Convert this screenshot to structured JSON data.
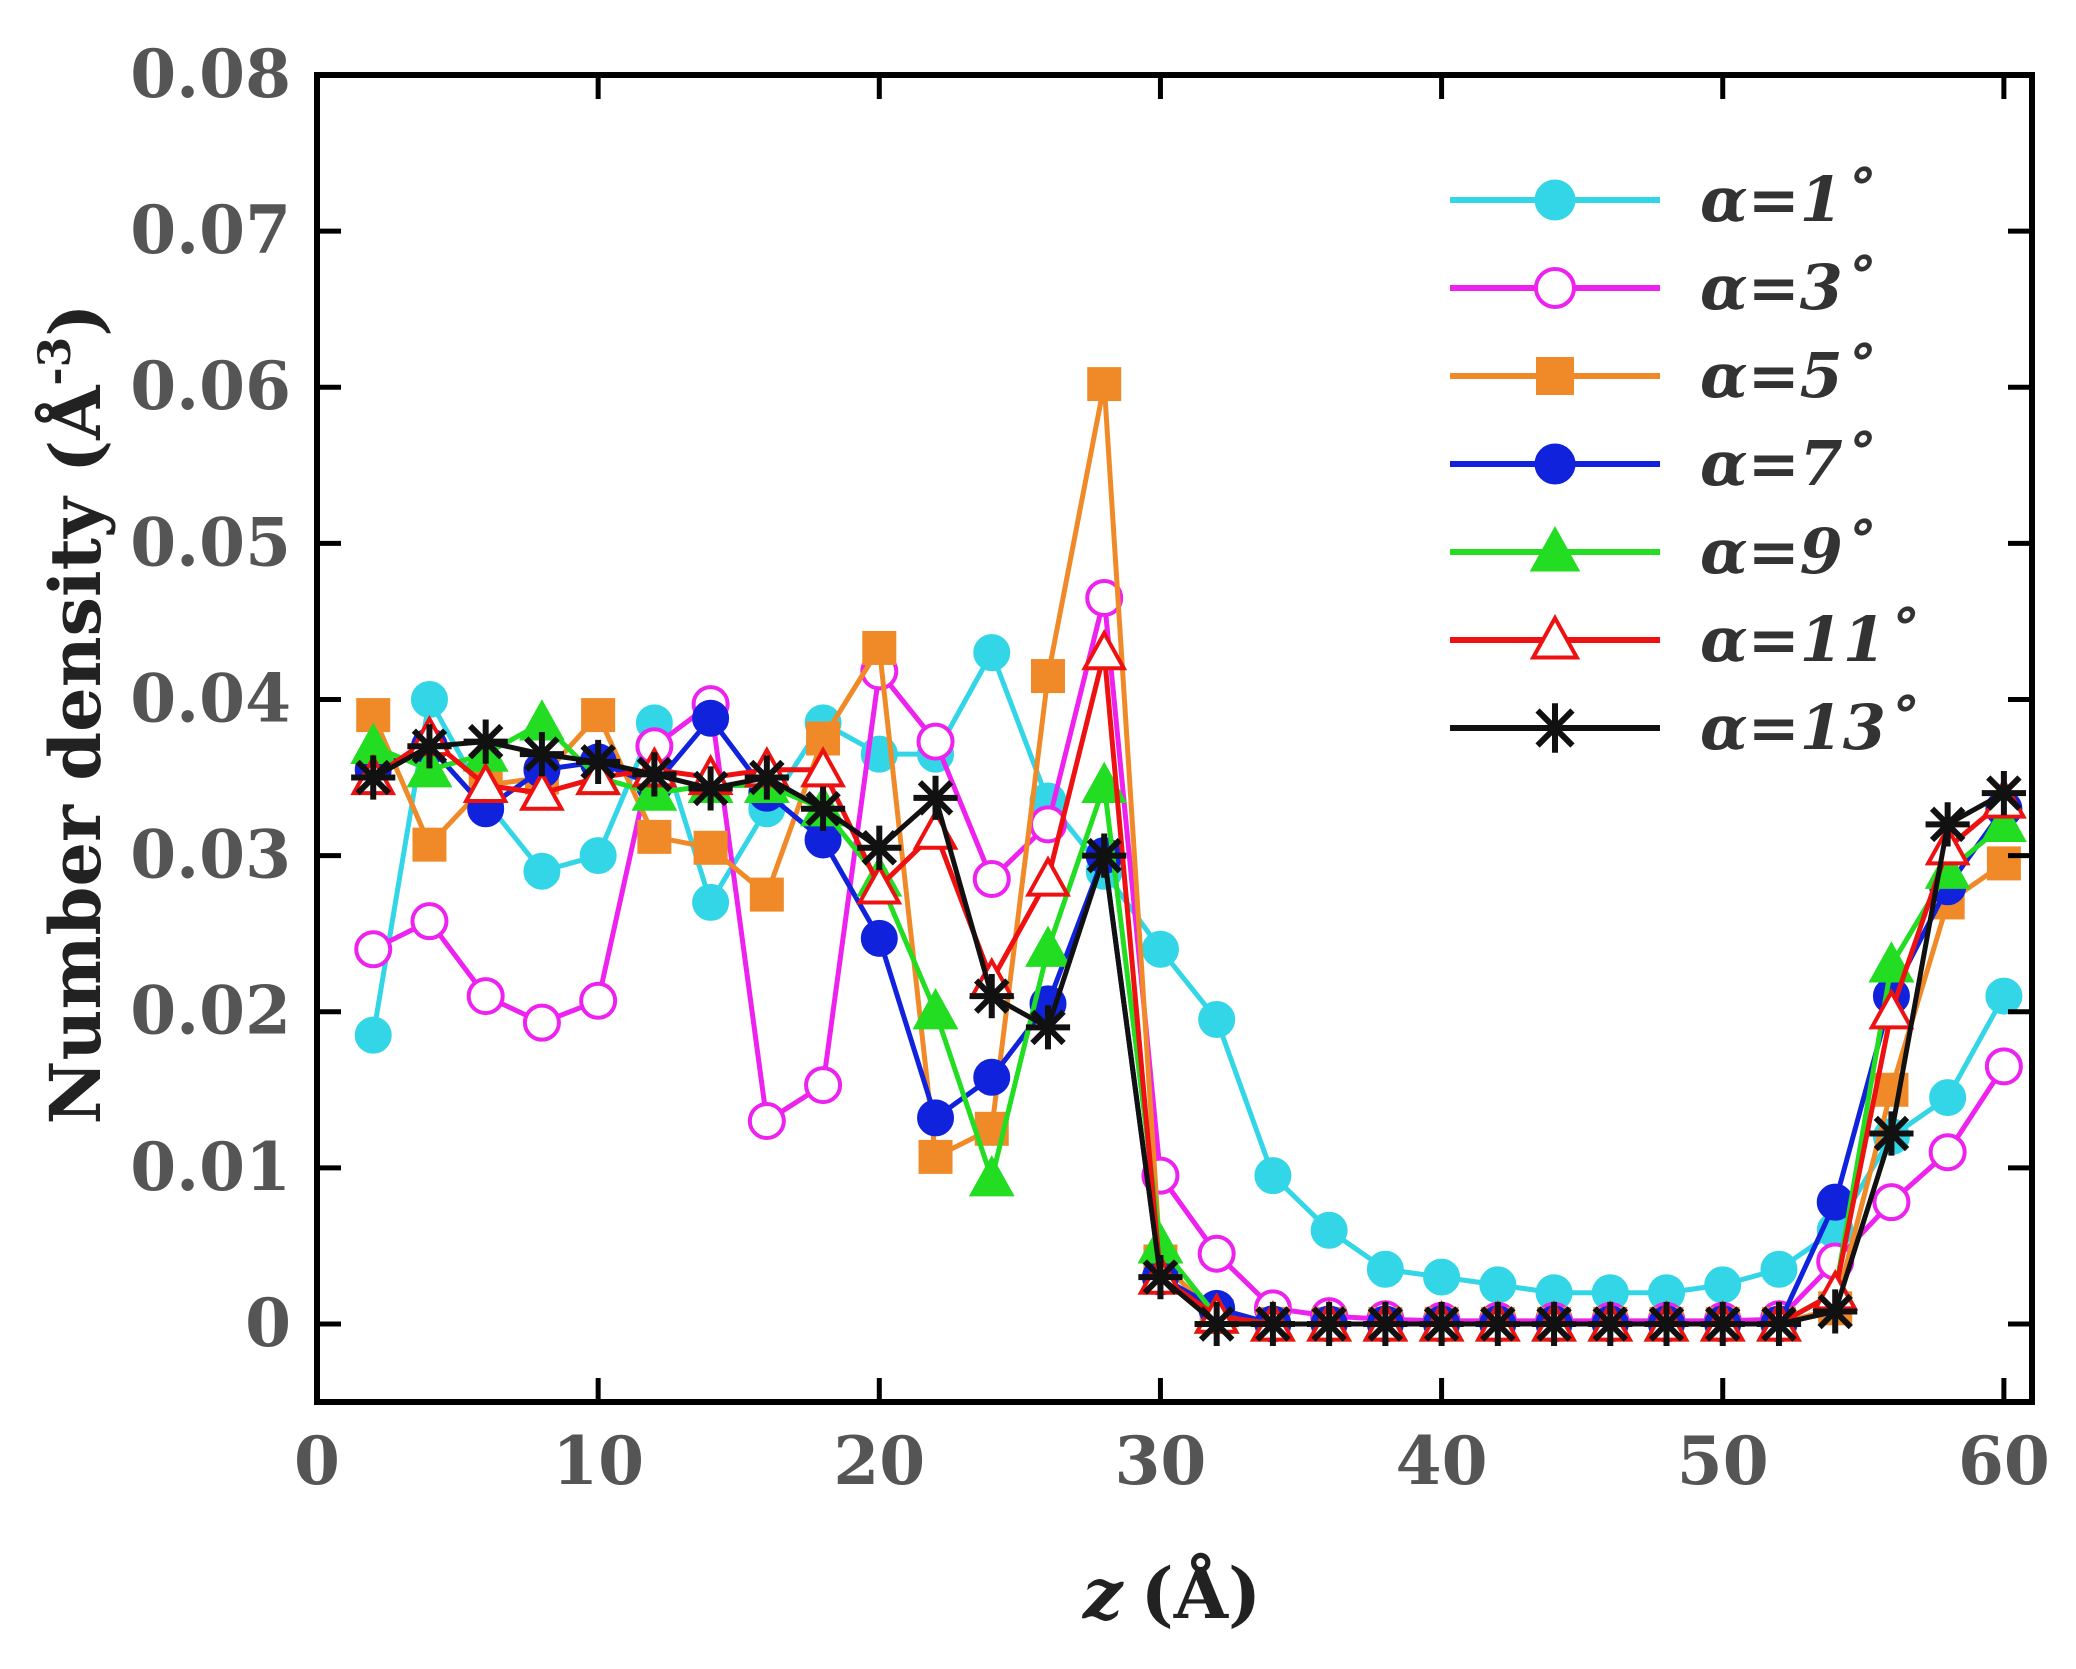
{
  "chart_data": {
    "type": "line",
    "title": "",
    "xlabel_italic": "z",
    "xlabel_unit": "(Å)",
    "ylabel": "Number density (Å",
    "ylabel_sup": "-3",
    "ylabel_close": ")",
    "xlim": [
      0,
      61
    ],
    "ylim": [
      -0.005,
      0.08
    ],
    "xticks": [
      0,
      10,
      20,
      30,
      40,
      50,
      60
    ],
    "xtick_labels": [
      "0",
      "10",
      "20",
      "30",
      "40",
      "50",
      "60"
    ],
    "yticks": [
      0,
      0.01,
      0.02,
      0.03,
      0.04,
      0.05,
      0.06,
      0.07,
      0.08
    ],
    "ytick_labels": [
      "0",
      "0.01",
      "0.02",
      "0.03",
      "0.04",
      "0.05",
      "0.06",
      "0.07",
      "0.08"
    ],
    "x": [
      2,
      4,
      6,
      8,
      10,
      12,
      14,
      16,
      18,
      20,
      22,
      24,
      26,
      28,
      30,
      32,
      34,
      36,
      38,
      40,
      42,
      44,
      46,
      48,
      50,
      52,
      54,
      56,
      58,
      60
    ],
    "series": [
      {
        "name": "α=1˚",
        "color": "#33d6e6",
        "marker": "circle-filled",
        "values": [
          0.0185,
          0.04,
          0.0335,
          0.029,
          0.03,
          0.0385,
          0.027,
          0.033,
          0.0385,
          0.0365,
          0.0365,
          0.043,
          0.0335,
          0.029,
          0.024,
          0.0195,
          0.0095,
          0.006,
          0.0035,
          0.003,
          0.0025,
          0.002,
          0.002,
          0.002,
          0.0025,
          0.0035,
          0.006,
          0.012,
          0.0145,
          0.021
        ]
      },
      {
        "name": "α=3˚",
        "color": "#ee22ee",
        "marker": "circle-open",
        "values": [
          0.024,
          0.0258,
          0.021,
          0.0193,
          0.0207,
          0.037,
          0.0397,
          0.013,
          0.0153,
          0.0418,
          0.0373,
          0.0285,
          0.032,
          0.0465,
          0.0095,
          0.0045,
          0.001,
          0.0005,
          0.0003,
          0.0002,
          0.0002,
          0.0002,
          0.0002,
          0.0002,
          0.0002,
          0.0003,
          0.004,
          0.0078,
          0.011,
          0.0165
        ]
      },
      {
        "name": "α=5˚",
        "color": "#f08a28",
        "marker": "square-filled",
        "values": [
          0.039,
          0.0307,
          0.0345,
          0.035,
          0.039,
          0.0312,
          0.0305,
          0.0275,
          0.0375,
          0.0433,
          0.0107,
          0.0125,
          0.0415,
          0.0602,
          0.004,
          0.0005,
          0.0,
          0.0,
          0.0,
          0.0,
          0.0,
          0.0,
          0.0,
          0.0,
          0.0,
          0.0,
          0.001,
          0.015,
          0.027,
          0.0295
        ]
      },
      {
        "name": "α=7˚",
        "color": "#1122dd",
        "marker": "circle-filled",
        "values": [
          0.0355,
          0.037,
          0.033,
          0.0355,
          0.036,
          0.0345,
          0.0388,
          0.034,
          0.031,
          0.0247,
          0.0132,
          0.0158,
          0.0205,
          0.03,
          0.003,
          0.001,
          0.0,
          0.0,
          0.0,
          0.0,
          0.0,
          0.0,
          0.0,
          0.0,
          0.0,
          0.0,
          0.0078,
          0.021,
          0.028,
          0.033
        ]
      },
      {
        "name": "α=9˚",
        "color": "#22dd22",
        "marker": "triangle-filled",
        "values": [
          0.037,
          0.0355,
          0.0365,
          0.0385,
          0.035,
          0.034,
          0.0345,
          0.0345,
          0.033,
          0.0285,
          0.02,
          0.0093,
          0.024,
          0.0345,
          0.005,
          0.0005,
          0.0,
          0.0,
          0.0,
          0.0,
          0.0,
          0.0,
          0.0,
          0.0,
          0.0,
          0.0,
          0.002,
          0.023,
          0.029,
          0.032
        ]
      },
      {
        "name": "α=11˚",
        "color": "#ee1111",
        "marker": "triangle-open",
        "values": [
          0.035,
          0.0375,
          0.0345,
          0.034,
          0.035,
          0.0355,
          0.035,
          0.0355,
          0.0355,
          0.028,
          0.0315,
          0.022,
          0.0285,
          0.043,
          0.003,
          0.0005,
          0.0,
          0.0,
          0.0,
          0.0,
          0.0,
          0.0,
          0.0,
          0.0,
          0.0,
          0.0,
          0.002,
          0.02,
          0.0305,
          0.0335
        ]
      },
      {
        "name": "α=13˚",
        "color": "#111111",
        "marker": "asterisk",
        "values": [
          0.035,
          0.037,
          0.0373,
          0.0365,
          0.036,
          0.0352,
          0.0343,
          0.035,
          0.033,
          0.0305,
          0.0337,
          0.021,
          0.019,
          0.03,
          0.003,
          0.0,
          0.0,
          0.0,
          0.0,
          0.0,
          0.0,
          0.0,
          0.0,
          0.0,
          0.0,
          0.0,
          0.0008,
          0.0122,
          0.032,
          0.034
        ]
      }
    ],
    "legend_position": "top-right",
    "grid": false
  }
}
